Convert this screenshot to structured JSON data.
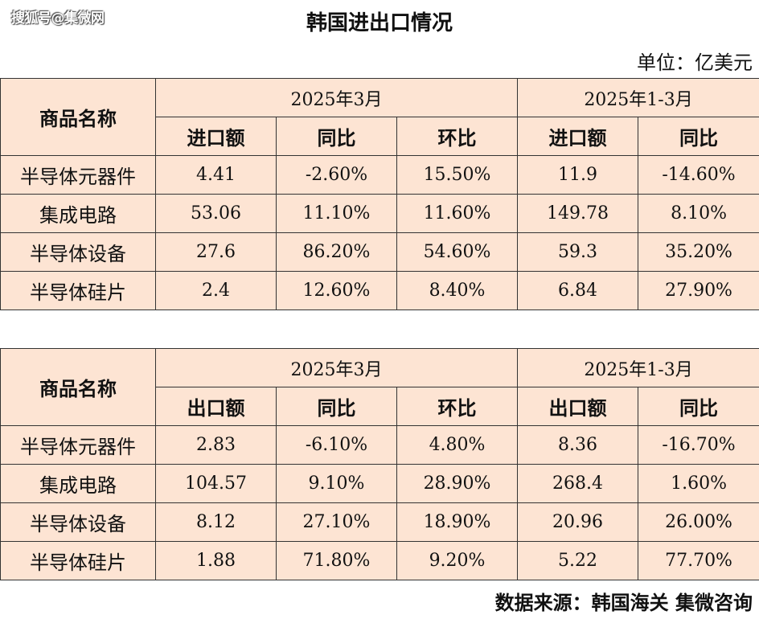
{
  "watermark": "搜狐号@集微网",
  "title": "韩国进出口情况",
  "unit": "单位：亿美元",
  "source": "数据来源：韩国海关 集微咨询",
  "import_table": {
    "name_header": "商品名称",
    "period_a": "2025年3月",
    "period_b": "2025年1-3月",
    "col_value": "进口额",
    "col_yoy": "同比",
    "col_mom": "环比",
    "col_value_b": "进口额",
    "col_yoy_b": "同比",
    "rows": [
      {
        "name": "半导体元器件",
        "v": "4.41",
        "yoy": "-2.60%",
        "mom": "15.50%",
        "v_b": "11.9",
        "yoy_b": "-14.60%"
      },
      {
        "name": "集成电路",
        "v": "53.06",
        "yoy": "11.10%",
        "mom": "11.60%",
        "v_b": "149.78",
        "yoy_b": "8.10%"
      },
      {
        "name": "半导体设备",
        "v": "27.6",
        "yoy": "86.20%",
        "mom": "54.60%",
        "v_b": "59.3",
        "yoy_b": "35.20%"
      },
      {
        "name": "半导体硅片",
        "v": "2.4",
        "yoy": "12.60%",
        "mom": "8.40%",
        "v_b": "6.84",
        "yoy_b": "27.90%"
      }
    ]
  },
  "export_table": {
    "name_header": "商品名称",
    "period_a": "2025年3月",
    "period_b": "2025年1-3月",
    "col_value": "出口额",
    "col_yoy": "同比",
    "col_mom": "环比",
    "col_value_b": "出口额",
    "col_yoy_b": "同比",
    "rows": [
      {
        "name": "半导体元器件",
        "v": "2.83",
        "yoy": "-6.10%",
        "mom": "4.80%",
        "v_b": "8.36",
        "yoy_b": "-16.70%"
      },
      {
        "name": "集成电路",
        "v": "104.57",
        "yoy": "9.10%",
        "mom": "28.90%",
        "v_b": "268.4",
        "yoy_b": "1.60%"
      },
      {
        "name": "半导体设备",
        "v": "8.12",
        "yoy": "27.10%",
        "mom": "18.90%",
        "v_b": "20.96",
        "yoy_b": "26.00%"
      },
      {
        "name": "半导体硅片",
        "v": "1.88",
        "yoy": "71.80%",
        "mom": "9.20%",
        "v_b": "5.22",
        "yoy_b": "77.70%"
      }
    ]
  }
}
